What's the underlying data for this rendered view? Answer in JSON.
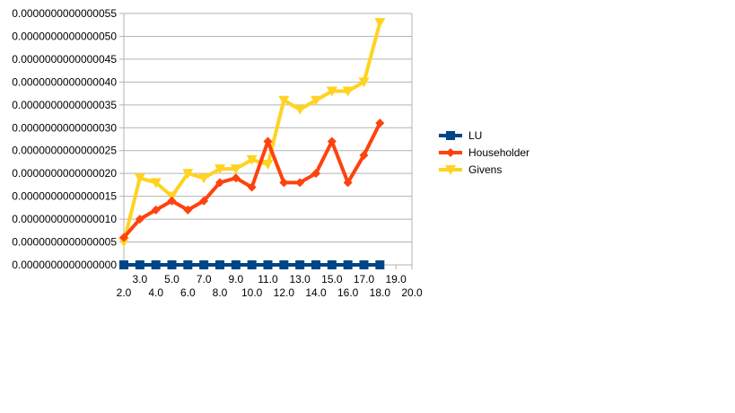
{
  "chart_data": {
    "type": "line",
    "x": [
      2,
      3,
      4,
      5,
      6,
      7,
      8,
      9,
      10,
      11,
      12,
      13,
      14,
      15,
      16,
      17,
      18
    ],
    "xlim": [
      2,
      20
    ],
    "ylim": [
      0,
      5.5e-15
    ],
    "x_tick_labels": [
      "2.0",
      "3.0",
      "4.0",
      "5.0",
      "6.0",
      "7.0",
      "8.0",
      "9.0",
      "10.0",
      "11.0",
      "12.0",
      "13.0",
      "14.0",
      "15.0",
      "16.0",
      "17.0",
      "18.0",
      "19.0",
      "20.0"
    ],
    "y_tick_labels": [
      "0.0000000000000000",
      "0.0000000000000005",
      "0.0000000000000010",
      "0.0000000000000015",
      "0.0000000000000020",
      "0.0000000000000025",
      "0.0000000000000030",
      "0.0000000000000035",
      "0.0000000000000040",
      "0.0000000000000045",
      "0.0000000000000050",
      "0.0000000000000055"
    ],
    "grid": true,
    "legend_position": "right",
    "series": [
      {
        "name": "LU",
        "color": "#004586",
        "marker": "square",
        "values": [
          0,
          0,
          0,
          0,
          0,
          0,
          0,
          0,
          0,
          0,
          0,
          0,
          0,
          0,
          0,
          0,
          0
        ]
      },
      {
        "name": "Householder",
        "color": "#ff420e",
        "marker": "diamond",
        "values": [
          6e-16,
          1e-15,
          1.2e-15,
          1.4e-15,
          1.2e-15,
          1.4e-15,
          1.8e-15,
          1.9e-15,
          1.7e-15,
          2.7e-15,
          1.8e-15,
          1.8e-15,
          2e-15,
          2.7e-15,
          1.8e-15,
          2.4e-15,
          3.1e-15
        ]
      },
      {
        "name": "Givens",
        "color": "#ffd320",
        "marker": "triangle-down",
        "values": [
          5e-16,
          1.9e-15,
          1.8e-15,
          1.5e-15,
          2e-15,
          1.9e-15,
          2.1e-15,
          2.1e-15,
          2.3e-15,
          2.2e-15,
          3.6e-15,
          3.4e-15,
          3.6e-15,
          3.8e-15,
          3.8e-15,
          4e-15,
          5.3e-15
        ]
      }
    ]
  }
}
